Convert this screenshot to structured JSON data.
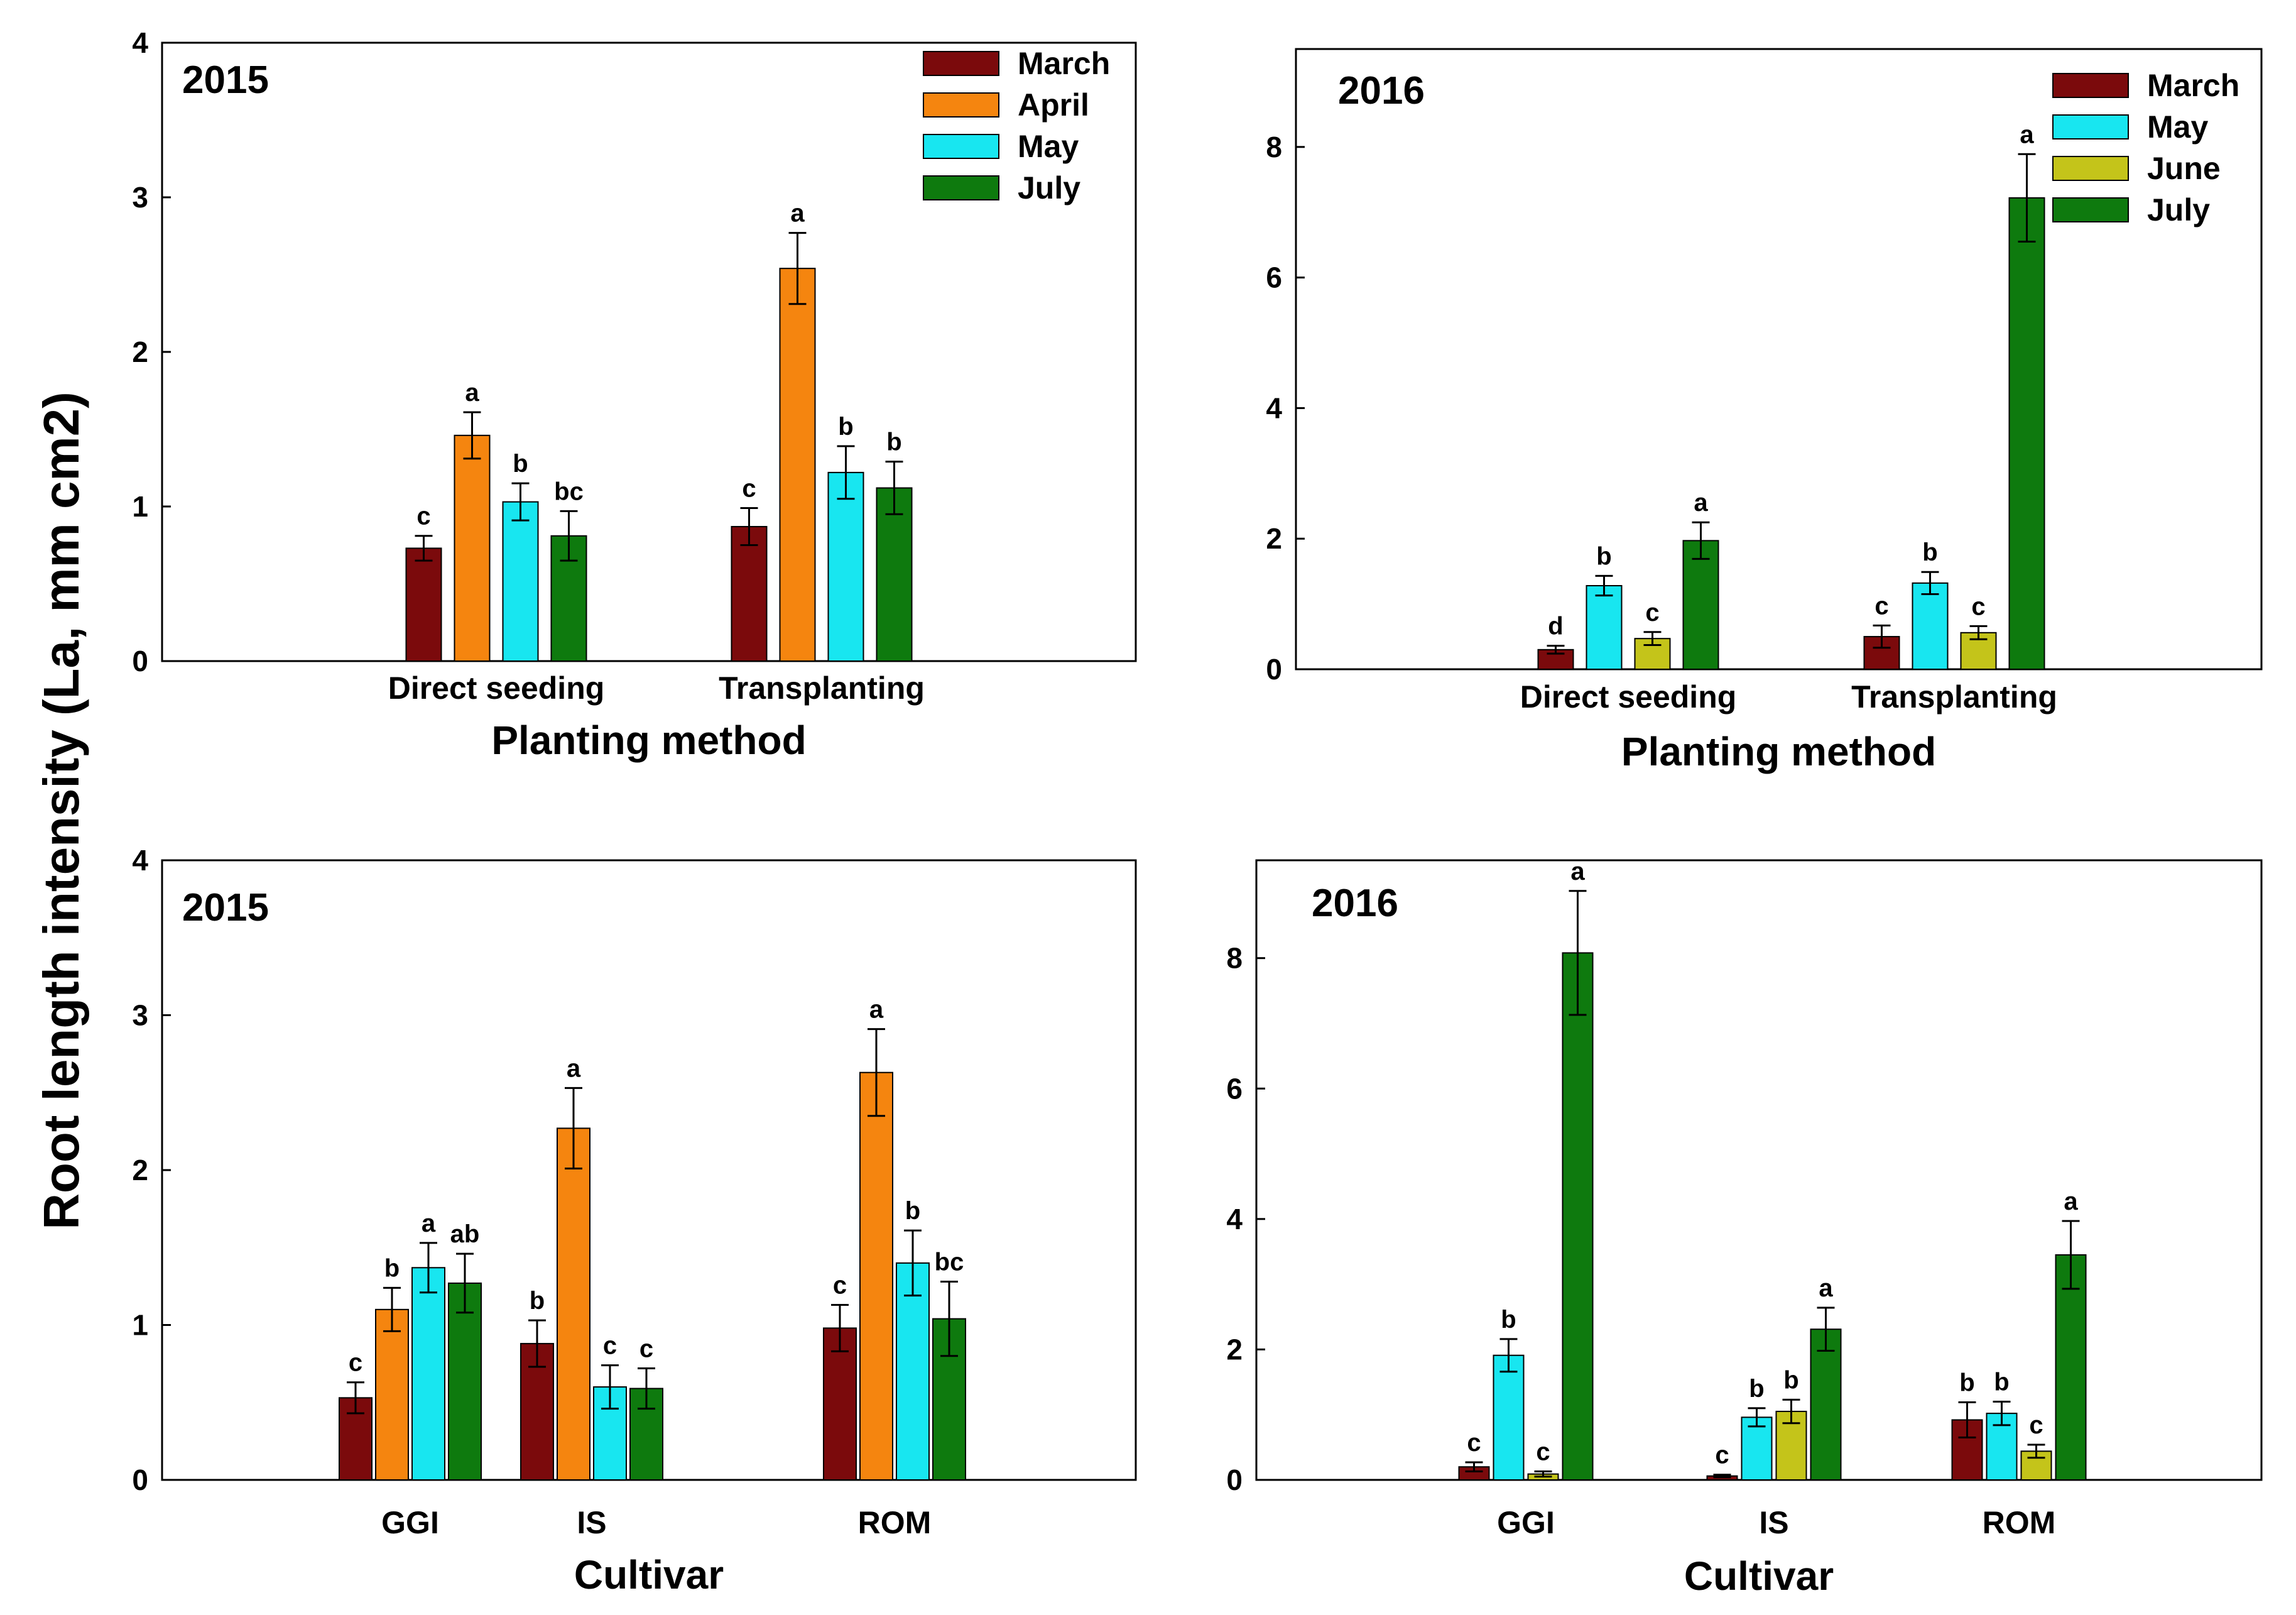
{
  "ylabel": "Root length intensity (La, mm cm2)",
  "colors": {
    "March": "#7b0a0c",
    "April": "#f5850f",
    "May": "#18e6f0",
    "June": "#c4c41a",
    "July": "#0e7a0e"
  },
  "chart_data": [
    {
      "type": "bar",
      "title": "2015",
      "xlabel": "Planting method",
      "ylabel": "Root length intensity (La, mm cm2)",
      "ylim": [
        0,
        4
      ],
      "yticks": [
        0,
        1,
        2,
        3,
        4
      ],
      "legend_position": "top-right",
      "categories": [
        "Direct seeding",
        "Transplanting"
      ],
      "series": [
        {
          "name": "March",
          "values": [
            0.73,
            0.87
          ],
          "errors": [
            0.08,
            0.12
          ],
          "labels": [
            "c",
            "c"
          ]
        },
        {
          "name": "April",
          "values": [
            1.46,
            2.54
          ],
          "errors": [
            0.15,
            0.23
          ],
          "labels": [
            "a",
            "a"
          ]
        },
        {
          "name": "May",
          "values": [
            1.03,
            1.22
          ],
          "errors": [
            0.12,
            0.17
          ],
          "labels": [
            "b",
            "b"
          ]
        },
        {
          "name": "July",
          "values": [
            0.81,
            1.12
          ],
          "errors": [
            0.16,
            0.17
          ],
          "labels": [
            "bc",
            "b"
          ]
        }
      ]
    },
    {
      "type": "bar",
      "title": "2016",
      "xlabel": "Planting method",
      "ylabel": "Root length intensity (La, mm cm2)",
      "ylim": [
        0,
        9.5
      ],
      "yticks": [
        0,
        2,
        4,
        6,
        8
      ],
      "legend_position": "top-right",
      "categories": [
        "Direct seeding",
        "Transplanting"
      ],
      "series": [
        {
          "name": "March",
          "values": [
            0.3,
            0.5
          ],
          "errors": [
            0.06,
            0.17
          ],
          "labels": [
            "d",
            "c"
          ]
        },
        {
          "name": "May",
          "values": [
            1.28,
            1.32
          ],
          "errors": [
            0.15,
            0.17
          ],
          "labels": [
            "b",
            "b"
          ]
        },
        {
          "name": "June",
          "values": [
            0.47,
            0.56
          ],
          "errors": [
            0.1,
            0.1
          ],
          "labels": [
            "c",
            "c"
          ]
        },
        {
          "name": "July",
          "values": [
            1.97,
            7.22
          ],
          "errors": [
            0.28,
            0.67
          ],
          "labels": [
            "a",
            "a"
          ]
        }
      ]
    },
    {
      "type": "bar",
      "title": "2015",
      "xlabel": "Cultivar",
      "ylabel": "Root length intensity (La, mm cm2)",
      "ylim": [
        0,
        4
      ],
      "yticks": [
        0,
        1,
        2,
        3,
        4
      ],
      "categories": [
        "GGI",
        "IS",
        "ROM"
      ],
      "series": [
        {
          "name": "March",
          "values": [
            0.53,
            0.88,
            0.98
          ],
          "errors": [
            0.1,
            0.15,
            0.15
          ],
          "labels": [
            "c",
            "b",
            "c"
          ]
        },
        {
          "name": "April",
          "values": [
            1.1,
            2.27,
            2.63
          ],
          "errors": [
            0.14,
            0.26,
            0.28
          ],
          "labels": [
            "b",
            "a",
            "a"
          ]
        },
        {
          "name": "May",
          "values": [
            1.37,
            0.6,
            1.4
          ],
          "errors": [
            0.16,
            0.14,
            0.21
          ],
          "labels": [
            "a",
            "c",
            "b"
          ]
        },
        {
          "name": "July",
          "values": [
            1.27,
            0.59,
            1.04
          ],
          "errors": [
            0.19,
            0.13,
            0.24
          ],
          "labels": [
            "ab",
            "c",
            "bc"
          ]
        }
      ]
    },
    {
      "type": "bar",
      "title": "2016",
      "xlabel": "Cultivar",
      "ylabel": "Root length intensity (La, mm cm2)",
      "ylim": [
        0,
        9.5
      ],
      "yticks": [
        0,
        2,
        4,
        6,
        8
      ],
      "categories": [
        "GGI",
        "IS",
        "ROM"
      ],
      "series": [
        {
          "name": "March",
          "values": [
            0.2,
            0.06,
            0.92
          ],
          "errors": [
            0.07,
            0.02,
            0.27
          ],
          "labels": [
            "c",
            "c",
            "b"
          ]
        },
        {
          "name": "May",
          "values": [
            1.91,
            0.96,
            1.02
          ],
          "errors": [
            0.25,
            0.14,
            0.18
          ],
          "labels": [
            "b",
            "b",
            "b"
          ]
        },
        {
          "name": "June",
          "values": [
            0.09,
            1.05,
            0.44
          ],
          "errors": [
            0.04,
            0.18,
            0.1
          ],
          "labels": [
            "c",
            "b",
            "c"
          ]
        },
        {
          "name": "July",
          "values": [
            8.08,
            2.31,
            3.45
          ],
          "errors": [
            0.95,
            0.33,
            0.52
          ],
          "labels": [
            "a",
            "a",
            "a"
          ]
        }
      ]
    }
  ]
}
